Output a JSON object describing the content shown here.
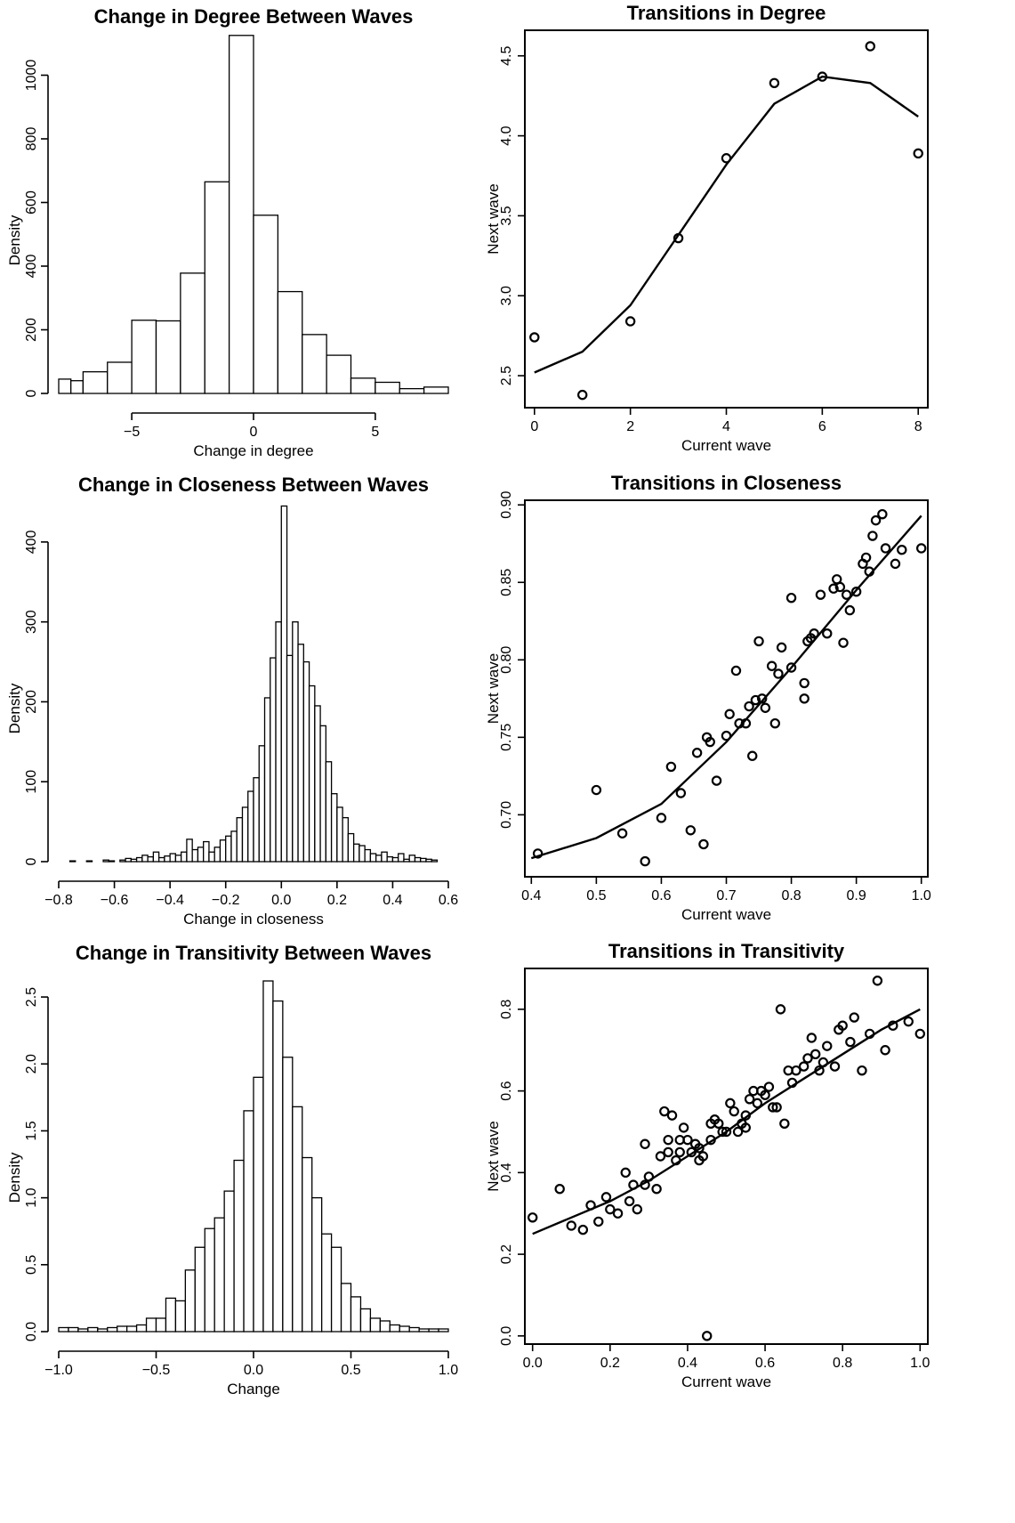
{
  "chart_data": [
    {
      "type": "bar",
      "title": "Change in Degree Between Waves",
      "xlabel": "Change in degree",
      "ylabel": "Density",
      "xlim": [
        -8,
        8
      ],
      "ylim": [
        0,
        1130
      ],
      "xticks": [
        -5,
        0,
        5
      ],
      "yticks": [
        0,
        200,
        400,
        600,
        800,
        1000
      ],
      "bin_width": 1,
      "bin_edges_start": -8,
      "values": [
        45,
        40,
        68,
        98,
        230,
        228,
        378,
        665,
        1125,
        560,
        320,
        185,
        120,
        48,
        35,
        15,
        20
      ],
      "partial_bins": [
        [
          -8,
          -7.5,
          45
        ],
        [
          -7.5,
          -7,
          40
        ]
      ]
    },
    {
      "type": "line",
      "title": "Transitions in Degree",
      "xlabel": "Current wave",
      "ylabel": "Next wave",
      "xlim": [
        -0.2,
        8.2
      ],
      "ylim": [
        2.3,
        4.66
      ],
      "xticks": [
        0,
        2,
        4,
        6,
        8
      ],
      "yticks": [
        2.5,
        3.0,
        3.5,
        4.0,
        4.5
      ],
      "points": {
        "x": [
          0,
          1,
          2,
          3,
          4,
          5,
          6,
          7,
          8
        ],
        "y": [
          2.74,
          2.38,
          2.84,
          3.36,
          3.86,
          4.33,
          4.37,
          4.56,
          3.89
        ]
      },
      "fit": {
        "x": [
          0,
          1,
          2,
          3,
          4,
          5,
          6,
          7,
          8
        ],
        "y": [
          2.52,
          2.65,
          2.94,
          3.38,
          3.82,
          4.2,
          4.37,
          4.33,
          4.12
        ]
      }
    },
    {
      "type": "bar",
      "title": "Change in Closeness Between Waves",
      "xlabel": "Change in closeness",
      "ylabel": "Density",
      "xlim": [
        -0.8,
        0.6
      ],
      "ylim": [
        0,
        450
      ],
      "xticks": [
        -0.8,
        -0.6,
        -0.4,
        -0.2,
        0.0,
        0.2,
        0.4,
        0.6
      ],
      "yticks": [
        0,
        100,
        200,
        300,
        400
      ],
      "bin_width": 0.02,
      "bin_edges_start": -0.76,
      "values": [
        1,
        0,
        0,
        1,
        0,
        0,
        2,
        1,
        0,
        2,
        4,
        3,
        5,
        8,
        6,
        12,
        5,
        7,
        10,
        8,
        12,
        28,
        15,
        18,
        25,
        12,
        18,
        27,
        32,
        38,
        55,
        68,
        88,
        105,
        145,
        205,
        255,
        300,
        445,
        258,
        300,
        272,
        250,
        220,
        195,
        170,
        125,
        85,
        68,
        55,
        35,
        22,
        20,
        15,
        10,
        8,
        12,
        6,
        5,
        10,
        3,
        8,
        5,
        4,
        3,
        2
      ]
    },
    {
      "type": "scatter",
      "title": "Transitions in Closeness",
      "xlabel": "Current wave",
      "ylabel": "Next wave",
      "xlim": [
        0.39,
        1.01
      ],
      "ylim": [
        0.66,
        0.903
      ],
      "xticks": [
        0.4,
        0.5,
        0.6,
        0.7,
        0.8,
        0.9,
        1.0
      ],
      "yticks": [
        0.7,
        0.75,
        0.8,
        0.85,
        0.9
      ],
      "points": {
        "x": [
          0.41,
          0.5,
          0.54,
          0.575,
          0.6,
          0.615,
          0.63,
          0.645,
          0.655,
          0.665,
          0.67,
          0.675,
          0.685,
          0.7,
          0.705,
          0.715,
          0.72,
          0.73,
          0.735,
          0.74,
          0.745,
          0.75,
          0.755,
          0.76,
          0.77,
          0.775,
          0.78,
          0.785,
          0.8,
          0.8,
          0.82,
          0.82,
          0.825,
          0.83,
          0.835,
          0.845,
          0.855,
          0.865,
          0.87,
          0.875,
          0.88,
          0.885,
          0.89,
          0.9,
          0.91,
          0.915,
          0.92,
          0.925,
          0.93,
          0.94,
          0.945,
          0.96,
          0.97,
          1.0
        ],
        "y": [
          0.675,
          0.716,
          0.688,
          0.67,
          0.698,
          0.731,
          0.714,
          0.69,
          0.74,
          0.681,
          0.75,
          0.747,
          0.722,
          0.751,
          0.765,
          0.793,
          0.759,
          0.759,
          0.77,
          0.738,
          0.774,
          0.812,
          0.775,
          0.769,
          0.796,
          0.759,
          0.791,
          0.808,
          0.795,
          0.84,
          0.775,
          0.785,
          0.812,
          0.814,
          0.817,
          0.842,
          0.817,
          0.846,
          0.852,
          0.847,
          0.811,
          0.842,
          0.832,
          0.844,
          0.862,
          0.866,
          0.857,
          0.88,
          0.89,
          0.894,
          0.872,
          0.862,
          0.871,
          0.872
        ]
      },
      "fit": {
        "x": [
          0.4,
          0.5,
          0.6,
          0.7,
          0.8,
          0.9,
          1.0
        ],
        "y": [
          0.672,
          0.685,
          0.707,
          0.747,
          0.795,
          0.845,
          0.893
        ]
      }
    },
    {
      "type": "bar",
      "title": "Change in Transitivity Between Waves",
      "xlabel": "Change",
      "ylabel": "Density",
      "xlim": [
        -1.0,
        1.0
      ],
      "ylim": [
        0,
        2.7
      ],
      "xticks": [
        -1.0,
        -0.5,
        0.0,
        0.5,
        1.0
      ],
      "yticks": [
        0.0,
        0.5,
        1.0,
        1.5,
        2.0,
        2.5
      ],
      "bin_width": 0.05,
      "bin_edges_start": -1.0,
      "values": [
        0.03,
        0.03,
        0.02,
        0.03,
        0.02,
        0.03,
        0.04,
        0.04,
        0.05,
        0.1,
        0.1,
        0.25,
        0.23,
        0.46,
        0.63,
        0.77,
        0.85,
        1.05,
        1.28,
        1.65,
        1.9,
        2.62,
        2.47,
        2.05,
        1.68,
        1.3,
        1.0,
        0.73,
        0.63,
        0.36,
        0.26,
        0.17,
        0.1,
        0.08,
        0.05,
        0.04,
        0.03,
        0.02,
        0.02,
        0.02
      ]
    },
    {
      "type": "scatter",
      "title": "Transitions in Transitivity",
      "xlabel": "Current wave",
      "ylabel": "Next wave",
      "xlim": [
        -0.02,
        1.02
      ],
      "ylim": [
        -0.02,
        0.9
      ],
      "xticks": [
        0.0,
        0.2,
        0.4,
        0.6,
        0.8,
        1.0
      ],
      "yticks": [
        0.0,
        0.2,
        0.4,
        0.6,
        0.8
      ],
      "points": {
        "x": [
          0.0,
          0.07,
          0.1,
          0.13,
          0.15,
          0.17,
          0.19,
          0.2,
          0.22,
          0.24,
          0.25,
          0.26,
          0.27,
          0.29,
          0.29,
          0.3,
          0.32,
          0.33,
          0.34,
          0.35,
          0.35,
          0.36,
          0.37,
          0.38,
          0.38,
          0.39,
          0.4,
          0.41,
          0.42,
          0.43,
          0.43,
          0.44,
          0.45,
          0.46,
          0.46,
          0.47,
          0.48,
          0.49,
          0.5,
          0.51,
          0.52,
          0.53,
          0.54,
          0.55,
          0.55,
          0.56,
          0.57,
          0.58,
          0.59,
          0.6,
          0.61,
          0.62,
          0.63,
          0.64,
          0.65,
          0.66,
          0.67,
          0.68,
          0.7,
          0.71,
          0.72,
          0.73,
          0.74,
          0.75,
          0.76,
          0.78,
          0.79,
          0.8,
          0.82,
          0.83,
          0.85,
          0.87,
          0.89,
          0.91,
          0.93,
          0.97,
          1.0
        ],
        "y": [
          0.29,
          0.36,
          0.27,
          0.26,
          0.32,
          0.28,
          0.34,
          0.31,
          0.3,
          0.4,
          0.33,
          0.37,
          0.31,
          0.47,
          0.37,
          0.39,
          0.36,
          0.44,
          0.55,
          0.45,
          0.48,
          0.54,
          0.43,
          0.45,
          0.48,
          0.51,
          0.48,
          0.45,
          0.47,
          0.43,
          0.46,
          0.44,
          0.0,
          0.48,
          0.52,
          0.53,
          0.52,
          0.5,
          0.5,
          0.57,
          0.55,
          0.5,
          0.52,
          0.54,
          0.51,
          0.58,
          0.6,
          0.57,
          0.6,
          0.59,
          0.61,
          0.56,
          0.56,
          0.8,
          0.52,
          0.65,
          0.62,
          0.65,
          0.66,
          0.68,
          0.73,
          0.69,
          0.65,
          0.67,
          0.71,
          0.66,
          0.75,
          0.76,
          0.72,
          0.78,
          0.65,
          0.74,
          0.87,
          0.7,
          0.76,
          0.77,
          0.74
        ]
      },
      "fit": {
        "x": [
          0.0,
          0.1,
          0.2,
          0.3,
          0.4,
          0.5,
          0.6,
          0.7,
          0.8,
          0.9,
          1.0
        ],
        "y": [
          0.25,
          0.29,
          0.33,
          0.38,
          0.44,
          0.5,
          0.57,
          0.63,
          0.69,
          0.75,
          0.8
        ]
      }
    }
  ]
}
